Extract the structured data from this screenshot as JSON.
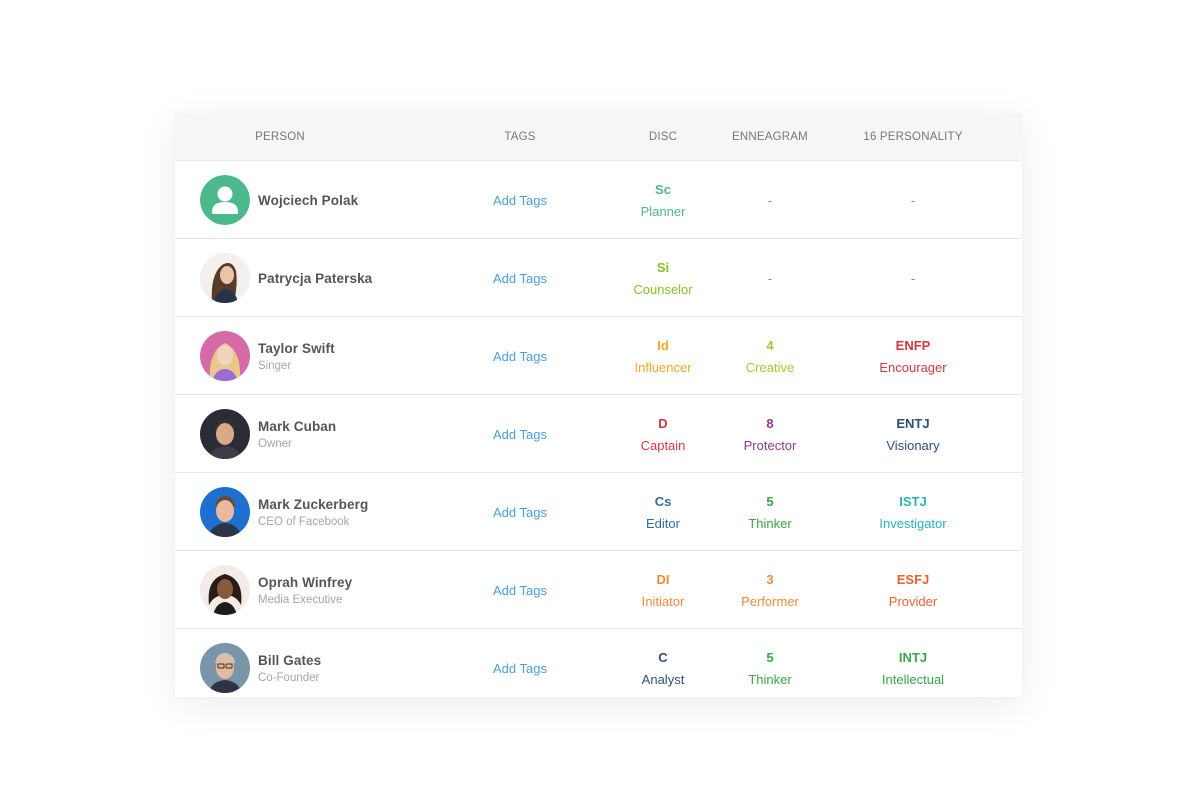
{
  "columns": {
    "person": "PERSON",
    "tags": "TAGS",
    "disc": "DISC",
    "enneagram": "ENNEAGRAM",
    "personality16": "16 PERSONALITY"
  },
  "add_tags_label": "Add Tags",
  "rows": [
    {
      "name": "Wojciech Polak",
      "role": "",
      "avatar": "default-user-icon",
      "disc": {
        "code": "Sc",
        "label": "Planner",
        "color": "#4fb78c"
      },
      "enneagram": {
        "code": "",
        "label": "",
        "dash": "-",
        "color": "#888888"
      },
      "personality16": {
        "code": "",
        "label": "",
        "dash": "-",
        "color": "#888888"
      }
    },
    {
      "name": "Patrycja Paterska",
      "role": "",
      "avatar": "photo",
      "disc": {
        "code": "Si",
        "label": "Counselor",
        "color": "#8cbf26"
      },
      "enneagram": {
        "code": "",
        "label": "",
        "dash": "-",
        "color": "#888888"
      },
      "personality16": {
        "code": "",
        "label": "",
        "dash": "-",
        "color": "#888888"
      }
    },
    {
      "name": "Taylor Swift",
      "role": "Singer",
      "avatar": "photo",
      "disc": {
        "code": "Id",
        "label": "Influencer",
        "color": "#f5a623"
      },
      "enneagram": {
        "code": "4",
        "label": "Creative",
        "color": "#9acd32"
      },
      "personality16": {
        "code": "ENFP",
        "label": "Encourager",
        "color": "#d0393e"
      }
    },
    {
      "name": "Mark Cuban",
      "role": "Owner",
      "avatar": "photo",
      "disc": {
        "code": "D",
        "label": "Captain",
        "color": "#d0393e"
      },
      "enneagram": {
        "code": "8",
        "label": "Protector",
        "color": "#8e3a8e"
      },
      "personality16": {
        "code": "ENTJ",
        "label": "Visionary",
        "color": "#2f4f7a"
      }
    },
    {
      "name": "Mark Zuckerberg",
      "role": "CEO of Facebook",
      "avatar": "photo",
      "disc": {
        "code": "Cs",
        "label": "Editor",
        "color": "#2e6e9e"
      },
      "enneagram": {
        "code": "5",
        "label": "Thinker",
        "color": "#3aa64a"
      },
      "personality16": {
        "code": "ISTJ",
        "label": "Investigator",
        "color": "#2ab3b8"
      }
    },
    {
      "name": "Oprah Winfrey",
      "role": "Media Executive",
      "avatar": "photo",
      "disc": {
        "code": "DI",
        "label": "Initiator",
        "color": "#f08a3c"
      },
      "enneagram": {
        "code": "3",
        "label": "Performer",
        "color": "#f08a3c"
      },
      "personality16": {
        "code": "ESFJ",
        "label": "Provider",
        "color": "#e8622e"
      }
    },
    {
      "name": "Bill Gates",
      "role": "Co-Founder",
      "avatar": "photo",
      "disc": {
        "code": "C",
        "label": "Analyst",
        "color": "#2f4f7a"
      },
      "enneagram": {
        "code": "5",
        "label": "Thinker",
        "color": "#3aa64a"
      },
      "personality16": {
        "code": "INTJ",
        "label": "Intellectual",
        "color": "#3aa64a"
      }
    }
  ]
}
